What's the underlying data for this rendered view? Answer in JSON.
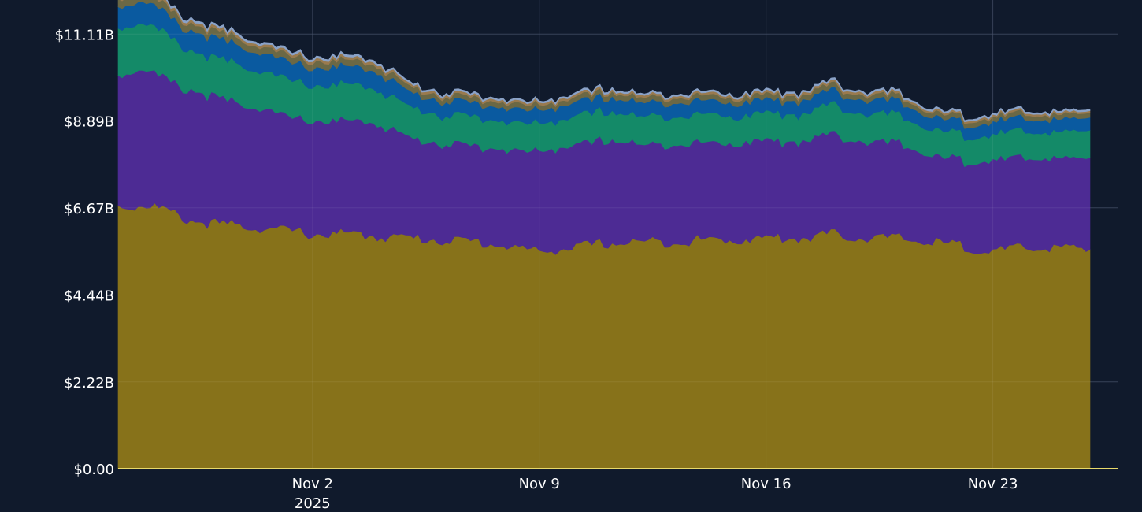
{
  "chart_data": {
    "type": "area",
    "stacked": true,
    "title": "",
    "xlabel": "",
    "ylabel": "",
    "y_ticks": [
      "$0.00",
      "$2.22B",
      "$4.44B",
      "$6.67B",
      "$8.89B",
      "$11.11B"
    ],
    "y_tick_values": [
      0,
      2.22,
      4.44,
      6.67,
      8.89,
      11.11
    ],
    "y_unit": "B USD",
    "ylim": [
      0,
      11.78
    ],
    "x_ticks": [
      {
        "label": "Nov 2",
        "sublabel": "2025",
        "date": "2025-11-02"
      },
      {
        "label": "Nov 9",
        "sublabel": "",
        "date": "2025-11-09"
      },
      {
        "label": "Nov 16",
        "sublabel": "",
        "date": "2025-11-16"
      },
      {
        "label": "Nov 23",
        "sublabel": "",
        "date": "2025-11-23"
      }
    ],
    "xlim": [
      "2025-10-27",
      "2025-11-26T21:00"
    ],
    "grid": true,
    "legend": "none",
    "x": [
      "2025-10-27",
      "2025-10-28",
      "2025-10-29",
      "2025-10-30",
      "2025-10-31",
      "2025-11-01",
      "2025-11-02",
      "2025-11-03",
      "2025-11-04",
      "2025-11-05",
      "2025-11-06",
      "2025-11-07",
      "2025-11-08",
      "2025-11-09",
      "2025-11-10",
      "2025-11-11",
      "2025-11-12",
      "2025-11-13",
      "2025-11-14",
      "2025-11-15",
      "2025-11-16",
      "2025-11-17",
      "2025-11-18",
      "2025-11-19",
      "2025-11-20",
      "2025-11-21",
      "2025-11-22",
      "2025-11-23",
      "2025-11-24",
      "2025-11-25",
      "2025-11-26"
    ],
    "series": [
      {
        "color": "#87721a",
        "values": [
          6.7,
          6.75,
          6.4,
          6.25,
          6.2,
          6.1,
          6.0,
          6.0,
          5.95,
          5.9,
          5.85,
          5.8,
          5.7,
          5.55,
          5.65,
          5.75,
          5.8,
          5.8,
          5.85,
          5.85,
          5.9,
          5.9,
          6.0,
          5.9,
          5.9,
          5.8,
          5.7,
          5.55,
          5.65,
          5.65,
          5.6
        ]
      },
      {
        "color": "#4d2b94",
        "values": [
          3.4,
          3.45,
          3.3,
          3.25,
          3.1,
          2.95,
          2.85,
          2.9,
          2.85,
          2.55,
          2.45,
          2.45,
          2.45,
          2.55,
          2.6,
          2.65,
          2.5,
          2.5,
          2.5,
          2.45,
          2.5,
          2.45,
          2.55,
          2.45,
          2.45,
          2.2,
          2.2,
          2.3,
          2.3,
          2.25,
          2.35
        ]
      },
      {
        "color": "#148a68",
        "values": [
          1.2,
          1.2,
          1.05,
          1.0,
          0.98,
          0.95,
          0.92,
          0.92,
          0.88,
          0.78,
          0.74,
          0.74,
          0.72,
          0.7,
          0.74,
          0.74,
          0.72,
          0.72,
          0.72,
          0.7,
          0.7,
          0.7,
          0.75,
          0.72,
          0.72,
          0.68,
          0.65,
          0.66,
          0.68,
          0.66,
          0.7
        ]
      },
      {
        "color": "#0a5aa0",
        "values": [
          0.56,
          0.55,
          0.5,
          0.5,
          0.48,
          0.46,
          0.45,
          0.46,
          0.45,
          0.38,
          0.36,
          0.35,
          0.35,
          0.34,
          0.35,
          0.36,
          0.35,
          0.35,
          0.35,
          0.34,
          0.34,
          0.34,
          0.36,
          0.35,
          0.35,
          0.32,
          0.31,
          0.32,
          0.33,
          0.32,
          0.33
        ]
      },
      {
        "color": "#6b6845",
        "values": [
          0.2,
          0.2,
          0.18,
          0.18,
          0.17,
          0.16,
          0.16,
          0.16,
          0.16,
          0.14,
          0.13,
          0.13,
          0.13,
          0.13,
          0.13,
          0.13,
          0.13,
          0.13,
          0.13,
          0.13,
          0.13,
          0.13,
          0.14,
          0.13,
          0.13,
          0.12,
          0.12,
          0.12,
          0.12,
          0.12,
          0.12
        ]
      },
      {
        "color": "#9a7a4e",
        "values": [
          0.08,
          0.08,
          0.07,
          0.07,
          0.07,
          0.07,
          0.07,
          0.07,
          0.07,
          0.06,
          0.06,
          0.06,
          0.06,
          0.06,
          0.06,
          0.06,
          0.06,
          0.06,
          0.06,
          0.06,
          0.06,
          0.06,
          0.06,
          0.06,
          0.06,
          0.05,
          0.05,
          0.05,
          0.05,
          0.05,
          0.05
        ]
      },
      {
        "color": "#8aa2c8",
        "values": [
          0.05,
          0.05,
          0.05,
          0.05,
          0.05,
          0.05,
          0.05,
          0.05,
          0.05,
          0.04,
          0.04,
          0.04,
          0.04,
          0.04,
          0.04,
          0.04,
          0.04,
          0.04,
          0.04,
          0.04,
          0.04,
          0.04,
          0.04,
          0.04,
          0.04,
          0.04,
          0.04,
          0.04,
          0.04,
          0.04,
          0.04
        ]
      }
    ]
  },
  "colors": {
    "background": "#101a2c",
    "gridline": "#27324a",
    "axis_text": "#ffffff",
    "baseline": "#e8d96a"
  }
}
